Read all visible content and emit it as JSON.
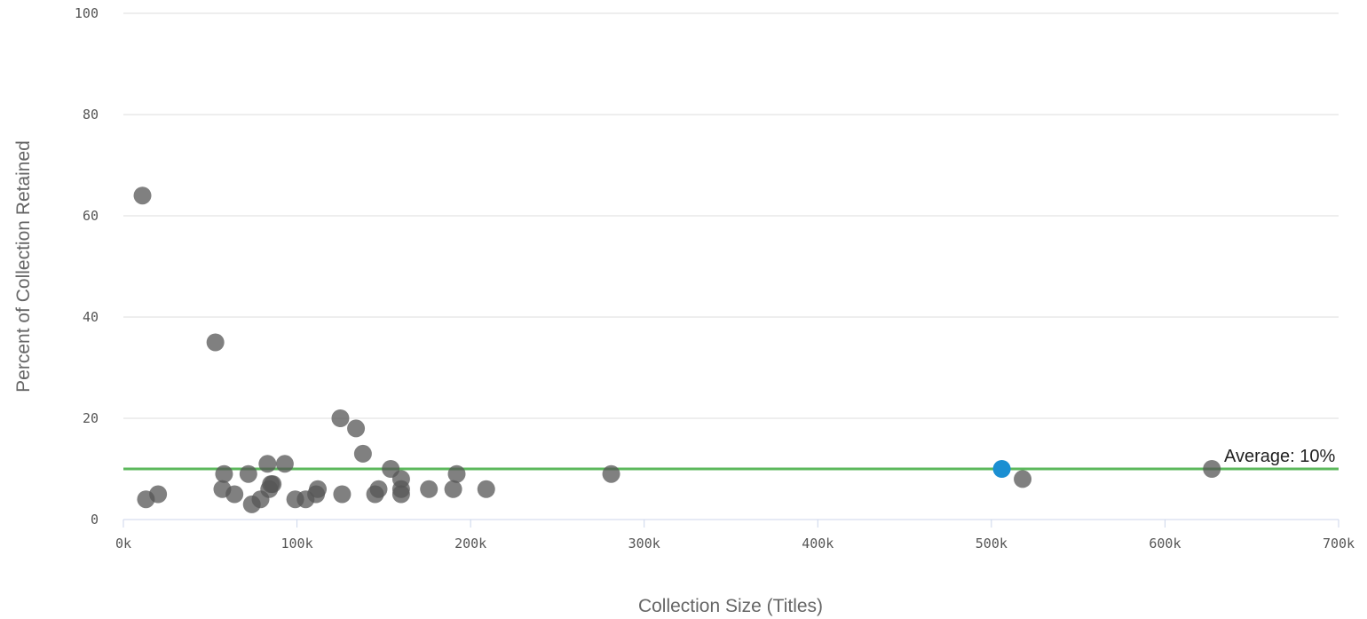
{
  "chart_data": {
    "type": "scatter",
    "title": "",
    "xlabel": "Collection Size (Titles)",
    "ylabel": "Percent of Collection Retained",
    "xlim": [
      0,
      700000
    ],
    "ylim": [
      0,
      100
    ],
    "x_ticks": [
      {
        "value": 0,
        "label": "0k"
      },
      {
        "value": 100000,
        "label": "100k"
      },
      {
        "value": 200000,
        "label": "200k"
      },
      {
        "value": 300000,
        "label": "300k"
      },
      {
        "value": 400000,
        "label": "400k"
      },
      {
        "value": 500000,
        "label": "500k"
      },
      {
        "value": 600000,
        "label": "600k"
      },
      {
        "value": 700000,
        "label": "700k"
      }
    ],
    "y_ticks": [
      {
        "value": 0,
        "label": "0"
      },
      {
        "value": 20,
        "label": "20"
      },
      {
        "value": 40,
        "label": "40"
      },
      {
        "value": 60,
        "label": "60"
      },
      {
        "value": 80,
        "label": "80"
      },
      {
        "value": 100,
        "label": "100"
      }
    ],
    "grid": true,
    "colors": {
      "points": "#555555",
      "highlight": "#1b8fd2",
      "average_line": "#5cb85c",
      "grid": "#dddddd"
    },
    "series": [
      {
        "highlight": false,
        "points": [
          {
            "x": 11000,
            "y": 64
          },
          {
            "x": 13000,
            "y": 4
          },
          {
            "x": 20000,
            "y": 5
          },
          {
            "x": 53000,
            "y": 35
          },
          {
            "x": 57000,
            "y": 6
          },
          {
            "x": 58000,
            "y": 9
          },
          {
            "x": 64000,
            "y": 5
          },
          {
            "x": 72000,
            "y": 9
          },
          {
            "x": 74000,
            "y": 3
          },
          {
            "x": 79000,
            "y": 4
          },
          {
            "x": 83000,
            "y": 11
          },
          {
            "x": 84000,
            "y": 6
          },
          {
            "x": 85000,
            "y": 7
          },
          {
            "x": 86000,
            "y": 7
          },
          {
            "x": 93000,
            "y": 11
          },
          {
            "x": 99000,
            "y": 4
          },
          {
            "x": 105000,
            "y": 4
          },
          {
            "x": 111000,
            "y": 5
          },
          {
            "x": 112000,
            "y": 6
          },
          {
            "x": 125000,
            "y": 20
          },
          {
            "x": 126000,
            "y": 5
          },
          {
            "x": 134000,
            "y": 18
          },
          {
            "x": 138000,
            "y": 13
          },
          {
            "x": 145000,
            "y": 5
          },
          {
            "x": 147000,
            "y": 6
          },
          {
            "x": 154000,
            "y": 10
          },
          {
            "x": 160000,
            "y": 8
          },
          {
            "x": 160000,
            "y": 6
          },
          {
            "x": 160000,
            "y": 5
          },
          {
            "x": 176000,
            "y": 6
          },
          {
            "x": 190000,
            "y": 6
          },
          {
            "x": 192000,
            "y": 9
          },
          {
            "x": 209000,
            "y": 6
          },
          {
            "x": 281000,
            "y": 9
          },
          {
            "x": 518000,
            "y": 8
          },
          {
            "x": 627000,
            "y": 10
          }
        ]
      },
      {
        "highlight": true,
        "points": [
          {
            "x": 506000,
            "y": 10
          }
        ]
      }
    ],
    "average": {
      "value": 10,
      "label": "Average: 10%"
    }
  }
}
